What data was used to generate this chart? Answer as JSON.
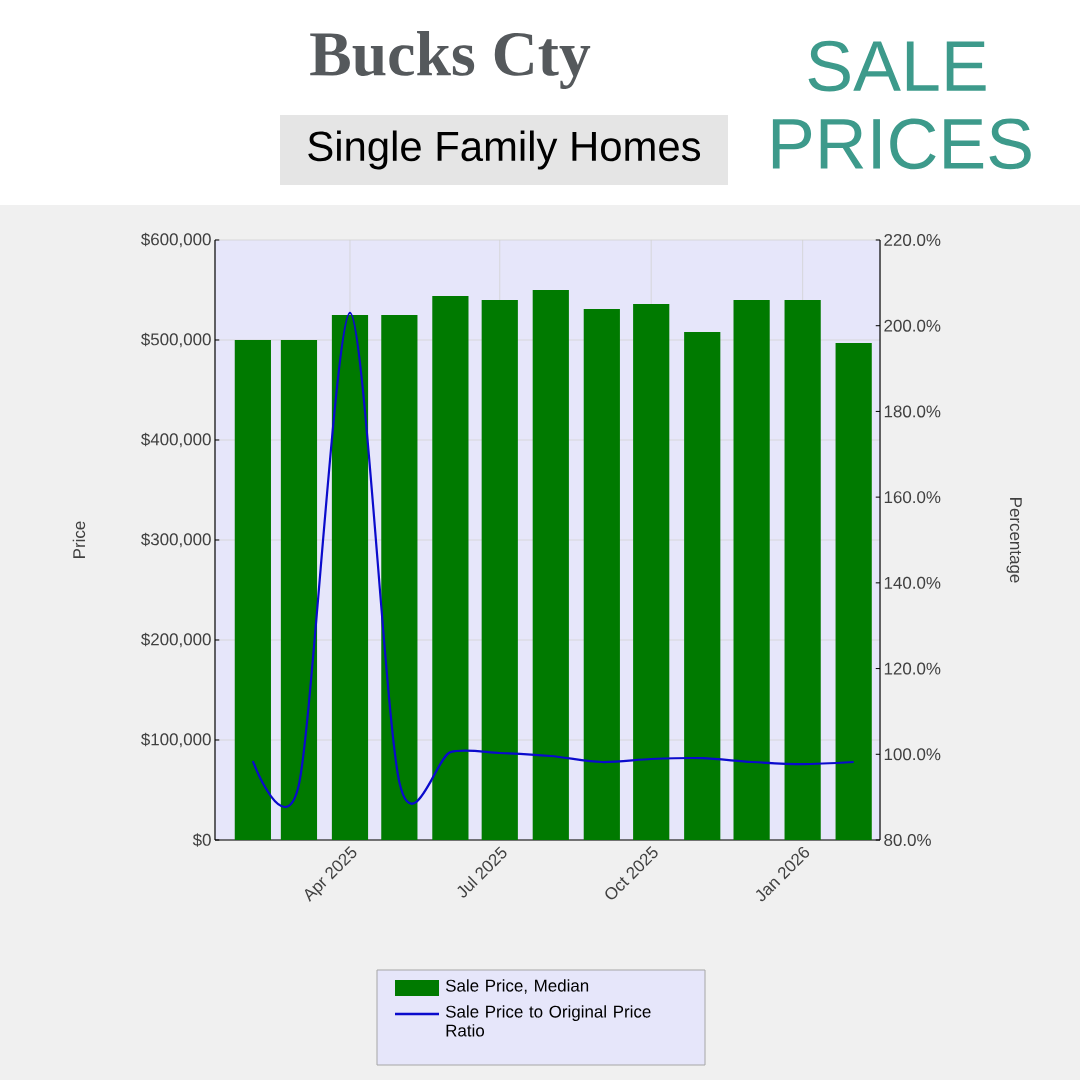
{
  "chart_data": {
    "type": "bar",
    "title": "Bucks Cty",
    "subtitle": "Single Family Homes",
    "annotations": [
      "SALE PRICES"
    ],
    "ylabel": "Price",
    "y2label": "Percentage",
    "x": [
      "2025-02",
      "2025-03",
      "2025-04",
      "2025-05",
      "2025-06",
      "2025-07",
      "2025-08",
      "2025-09",
      "2025-10",
      "2025-11",
      "2025-12",
      "2026-01",
      "2026-02"
    ],
    "xlim": [
      "2025-01-09",
      "2026-02-17"
    ],
    "xticks": [
      {
        "value": "2025-04",
        "label": "Apr 2025"
      },
      {
        "value": "2025-07",
        "label": "Jul 2025"
      },
      {
        "value": "2025-10",
        "label": "Oct 2025"
      },
      {
        "value": "2026-01",
        "label": "Jan 2026"
      }
    ],
    "ylim": [
      0,
      600000
    ],
    "yticks": [
      {
        "value": 0,
        "label": "$0"
      },
      {
        "value": 100000,
        "label": "$100,000"
      },
      {
        "value": 200000,
        "label": "$200,000"
      },
      {
        "value": 300000,
        "label": "$300,000"
      },
      {
        "value": 400000,
        "label": "$400,000"
      },
      {
        "value": 500000,
        "label": "$500,000"
      },
      {
        "value": 600000,
        "label": "$600,000"
      }
    ],
    "y2lim": [
      80,
      220
    ],
    "y2ticks": [
      {
        "value": 80,
        "label": "80.0%"
      },
      {
        "value": 100,
        "label": "100.0%"
      },
      {
        "value": 120,
        "label": "120.0%"
      },
      {
        "value": 140,
        "label": "140.0%"
      },
      {
        "value": 160,
        "label": "160.0%"
      },
      {
        "value": 180,
        "label": "180.0%"
      },
      {
        "value": 200,
        "label": "200.0%"
      },
      {
        "value": 220,
        "label": "220.0%"
      }
    ],
    "series": [
      {
        "name": "Sale Price, Median",
        "color": "#007a00",
        "values": [
          500000,
          500000,
          525000,
          525000,
          544000,
          540000,
          550000,
          531000,
          536000,
          508000,
          540000,
          540000,
          497000
        ]
      },
      {
        "name": "Sale Price to Original Price Ratio",
        "type": "line",
        "axis": "y2",
        "color": "#0a0acc",
        "values": [
          98.4,
          93,
          203,
          93.5,
          100.5,
          100.3,
          99.6,
          98.2,
          98.9,
          99.1,
          98.2,
          97.7,
          98.2
        ]
      }
    ],
    "grid": true,
    "legend": "bottom"
  }
}
